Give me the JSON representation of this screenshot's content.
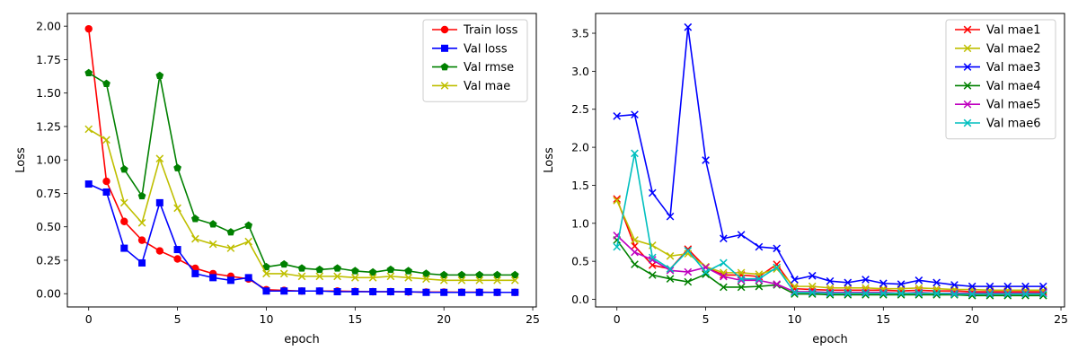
{
  "chart_data": [
    {
      "type": "line",
      "xlabel": "epoch",
      "ylabel": "Loss",
      "xlim": [
        -1.2,
        25.2
      ],
      "ylim": [
        -0.099,
        2.095
      ],
      "xticks": [
        0,
        5,
        10,
        15,
        20,
        25
      ],
      "yticks": [
        0.0,
        0.25,
        0.5,
        0.75,
        1.0,
        1.25,
        1.5,
        1.75,
        2.0
      ],
      "ytick_labels": [
        "0.00",
        "0.25",
        "0.50",
        "0.75",
        "1.00",
        "1.25",
        "1.50",
        "1.75",
        "2.00"
      ],
      "legend_position": "top-right",
      "x": [
        0,
        1,
        2,
        3,
        4,
        5,
        6,
        7,
        8,
        9,
        10,
        11,
        12,
        13,
        14,
        15,
        16,
        17,
        18,
        19,
        20,
        21,
        22,
        23,
        24
      ],
      "series": [
        {
          "name": "Train loss",
          "color": "#ff0000",
          "marker": "circle",
          "values": [
            1.98,
            0.84,
            0.54,
            0.4,
            0.32,
            0.26,
            0.19,
            0.15,
            0.13,
            0.11,
            0.03,
            0.025,
            0.02,
            0.02,
            0.02,
            0.017,
            0.015,
            0.015,
            0.013,
            0.012,
            0.012,
            0.011,
            0.011,
            0.01,
            0.01
          ]
        },
        {
          "name": "Val loss",
          "color": "#0000ff",
          "marker": "square",
          "values": [
            0.82,
            0.76,
            0.34,
            0.23,
            0.68,
            0.33,
            0.15,
            0.12,
            0.1,
            0.12,
            0.02,
            0.02,
            0.02,
            0.02,
            0.015,
            0.015,
            0.015,
            0.015,
            0.015,
            0.01,
            0.01,
            0.01,
            0.01,
            0.01,
            0.01
          ]
        },
        {
          "name": "Val rmse",
          "color": "#008000",
          "marker": "pentagon",
          "values": [
            1.65,
            1.57,
            0.93,
            0.73,
            1.63,
            0.94,
            0.56,
            0.52,
            0.46,
            0.51,
            0.2,
            0.22,
            0.19,
            0.18,
            0.19,
            0.17,
            0.16,
            0.18,
            0.17,
            0.15,
            0.14,
            0.14,
            0.14,
            0.14,
            0.14
          ]
        },
        {
          "name": "Val mae",
          "color": "#bfbf00",
          "marker": "x",
          "values": [
            1.23,
            1.15,
            0.68,
            0.53,
            1.01,
            0.64,
            0.41,
            0.37,
            0.34,
            0.39,
            0.15,
            0.15,
            0.13,
            0.13,
            0.13,
            0.12,
            0.12,
            0.13,
            0.12,
            0.11,
            0.1,
            0.1,
            0.1,
            0.1,
            0.1
          ]
        }
      ]
    },
    {
      "type": "line",
      "xlabel": "epoch",
      "ylabel": "Loss",
      "xlim": [
        -1.2,
        25.2
      ],
      "ylim": [
        -0.1,
        3.76
      ],
      "xticks": [
        0,
        5,
        10,
        15,
        20,
        25
      ],
      "yticks": [
        0.0,
        0.5,
        1.0,
        1.5,
        2.0,
        2.5,
        3.0,
        3.5
      ],
      "ytick_labels": [
        "0.0",
        "0.5",
        "1.0",
        "1.5",
        "2.0",
        "2.5",
        "3.0",
        "3.5"
      ],
      "legend_position": "top-right",
      "x": [
        0,
        1,
        2,
        3,
        4,
        5,
        6,
        7,
        8,
        9,
        10,
        11,
        12,
        13,
        14,
        15,
        16,
        17,
        18,
        19,
        20,
        21,
        22,
        23,
        24
      ],
      "series": [
        {
          "name": "Val mae1",
          "color": "#ff0000",
          "marker": "x",
          "values": [
            1.32,
            0.7,
            0.45,
            0.4,
            0.66,
            0.42,
            0.32,
            0.32,
            0.3,
            0.46,
            0.14,
            0.13,
            0.12,
            0.12,
            0.12,
            0.12,
            0.11,
            0.12,
            0.11,
            0.11,
            0.1,
            0.1,
            0.1,
            0.1,
            0.1
          ]
        },
        {
          "name": "Val mae2",
          "color": "#bfbf00",
          "marker": "x",
          "values": [
            1.3,
            0.78,
            0.71,
            0.57,
            0.6,
            0.43,
            0.35,
            0.35,
            0.33,
            0.4,
            0.17,
            0.17,
            0.15,
            0.15,
            0.15,
            0.14,
            0.14,
            0.15,
            0.14,
            0.13,
            0.13,
            0.12,
            0.12,
            0.12,
            0.12
          ]
        },
        {
          "name": "Val mae3",
          "color": "#0000ff",
          "marker": "x",
          "values": [
            2.41,
            2.43,
            1.4,
            1.09,
            3.58,
            1.83,
            0.8,
            0.85,
            0.69,
            0.67,
            0.26,
            0.31,
            0.24,
            0.22,
            0.26,
            0.21,
            0.2,
            0.25,
            0.22,
            0.19,
            0.17,
            0.17,
            0.17,
            0.17,
            0.17
          ]
        },
        {
          "name": "Val mae4",
          "color": "#008000",
          "marker": "x",
          "values": [
            0.78,
            0.46,
            0.32,
            0.27,
            0.23,
            0.33,
            0.16,
            0.16,
            0.17,
            0.19,
            0.07,
            0.07,
            0.06,
            0.06,
            0.06,
            0.06,
            0.06,
            0.06,
            0.06,
            0.06,
            0.05,
            0.05,
            0.05,
            0.05,
            0.05
          ]
        },
        {
          "name": "Val mae5",
          "color": "#bf00bf",
          "marker": "x",
          "values": [
            0.84,
            0.62,
            0.52,
            0.38,
            0.36,
            0.42,
            0.3,
            0.25,
            0.25,
            0.2,
            0.1,
            0.1,
            0.09,
            0.09,
            0.09,
            0.09,
            0.08,
            0.09,
            0.08,
            0.08,
            0.08,
            0.08,
            0.08,
            0.08,
            0.08
          ]
        },
        {
          "name": "Val mae6",
          "color": "#00bfbf",
          "marker": "x",
          "values": [
            0.69,
            1.92,
            0.55,
            0.4,
            0.64,
            0.36,
            0.48,
            0.27,
            0.27,
            0.42,
            0.09,
            0.09,
            0.08,
            0.08,
            0.08,
            0.08,
            0.08,
            0.08,
            0.08,
            0.07,
            0.07,
            0.07,
            0.07,
            0.07,
            0.07
          ]
        }
      ]
    }
  ]
}
